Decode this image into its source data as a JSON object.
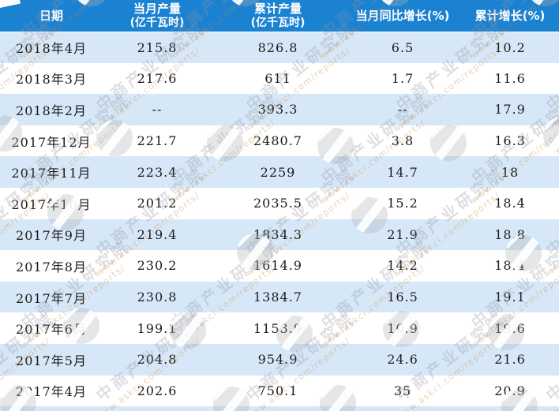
{
  "colors": {
    "header_bg": "#1b82d2",
    "header_fg": "#ffffff",
    "row_bg": "#ffffff",
    "row_alt_bg": "#d6e8f8",
    "cell_fg": "#1a1a1a"
  },
  "table": {
    "headers": [
      {
        "line1": "日期",
        "line2": ""
      },
      {
        "line1": "当月产量",
        "line2": "(亿千瓦时)"
      },
      {
        "line1": "累计产量",
        "line2": "(亿千瓦时)"
      },
      {
        "line1": "当月同比增长(%)",
        "line2": ""
      },
      {
        "line1": "累计增长(%)",
        "line2": ""
      }
    ]
  },
  "chart_data": {
    "type": "table",
    "title": "",
    "columns": [
      "日期",
      "当月产量(亿千瓦时)",
      "累计产量(亿千瓦时)",
      "当月同比增长(%)",
      "累计增长(%)"
    ],
    "rows": [
      [
        "2018年4月",
        215.8,
        826.8,
        6.5,
        10.2
      ],
      [
        "2018年3月",
        217.6,
        611,
        1.7,
        11.6
      ],
      [
        "2018年2月",
        "--",
        393.3,
        "--",
        17.9
      ],
      [
        "2017年12月",
        221.7,
        2480.7,
        3.8,
        16.3
      ],
      [
        "2017年11月",
        223.4,
        2259,
        14.7,
        18
      ],
      [
        "2017年10月",
        201.2,
        2035.5,
        15.2,
        18.4
      ],
      [
        "2017年9月",
        219.4,
        1834.3,
        21.9,
        18.8
      ],
      [
        "2017年8月",
        230.2,
        1614.9,
        14.2,
        18.4
      ],
      [
        "2017年7月",
        230.8,
        1384.7,
        16.5,
        19.1
      ],
      [
        "2017年6月",
        199.1,
        1153.9,
        10.9,
        19.6
      ],
      [
        "2017年5月",
        204.8,
        954.9,
        24.6,
        21.6
      ],
      [
        "2017年4月",
        202.6,
        750.1,
        35,
        20.9
      ]
    ]
  },
  "watermark": {
    "brand_text": "中商产业研究院",
    "url_text": "www.askci.com/reports/"
  }
}
